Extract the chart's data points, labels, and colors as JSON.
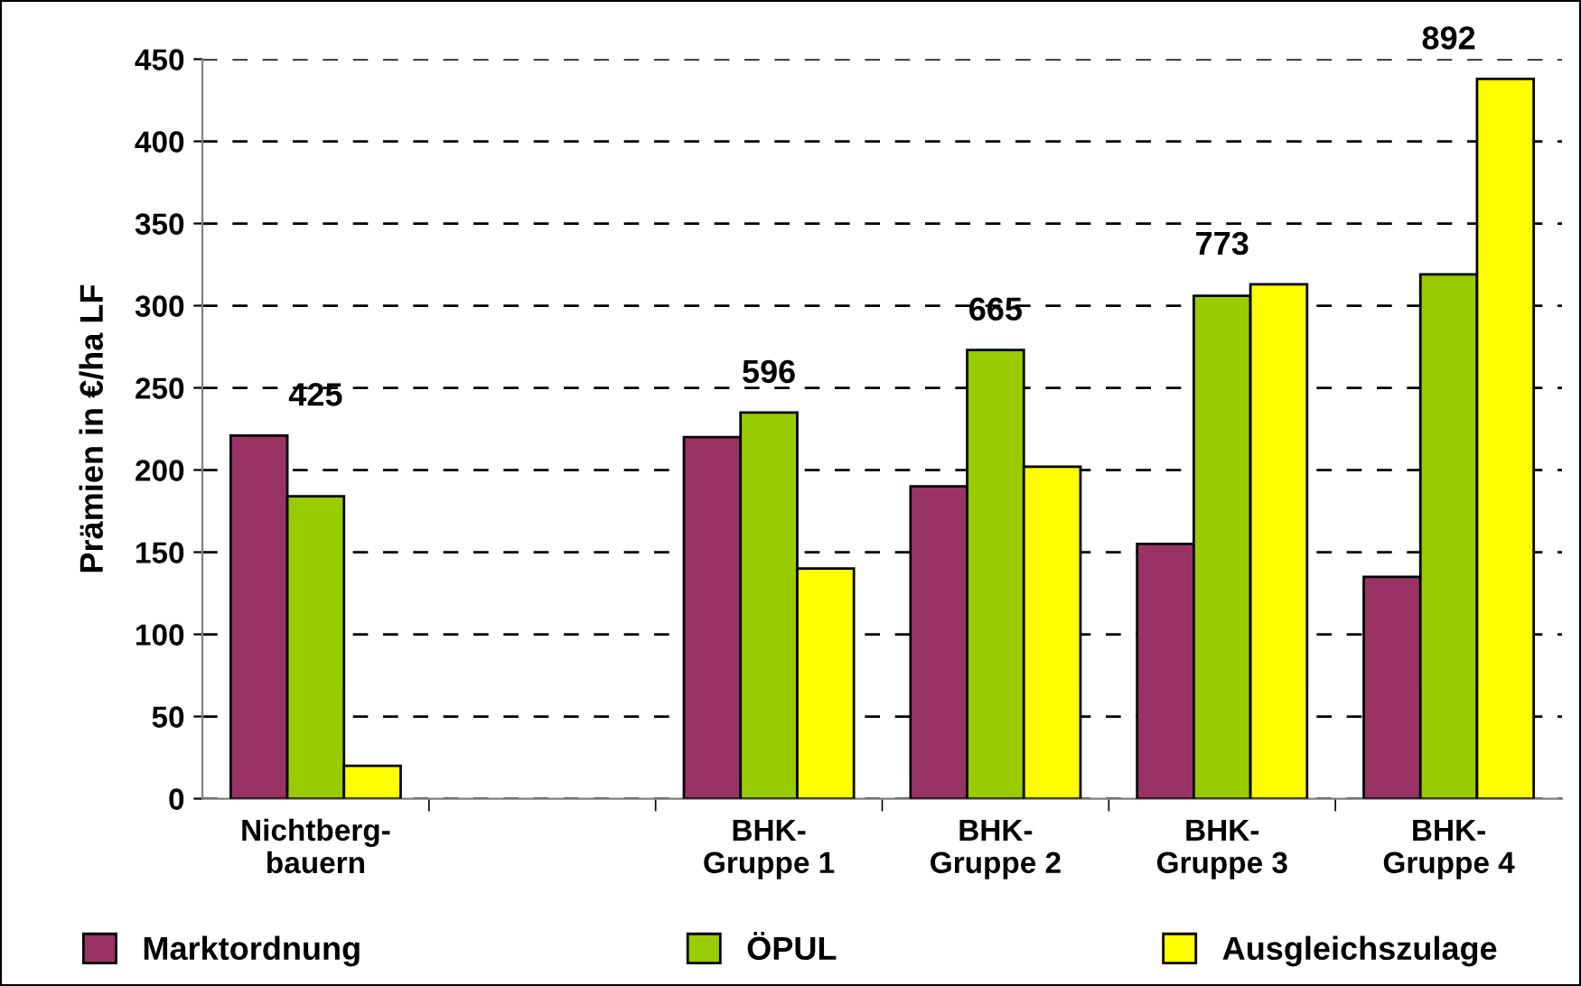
{
  "chart_data": {
    "type": "bar",
    "ylabel": "Prämien in €/ha LF",
    "categories": [
      "Nichtberg-\nbauern",
      null,
      "BHK-\nGruppe 1",
      "BHK-\nGruppe 2",
      "BHK-\nGruppe 3",
      "BHK-\nGruppe 4"
    ],
    "series": [
      {
        "name": "Marktordnung",
        "color": "#993366",
        "values": [
          221,
          null,
          220,
          190,
          155,
          135
        ]
      },
      {
        "name": "ÖPUL",
        "color": "#99cc00",
        "values": [
          184,
          null,
          235,
          273,
          306,
          319
        ]
      },
      {
        "name": "Ausgleichszulage",
        "color": "#ffff00",
        "values": [
          20,
          null,
          140,
          202,
          313,
          438
        ]
      }
    ],
    "totals": [
      "425",
      null,
      "596",
      "665",
      "773",
      "892"
    ],
    "ylim": [
      0,
      450
    ],
    "yticks": [
      0,
      50,
      100,
      150,
      200,
      250,
      300,
      350,
      400,
      450
    ],
    "grid": "y",
    "legend": "bottom"
  }
}
